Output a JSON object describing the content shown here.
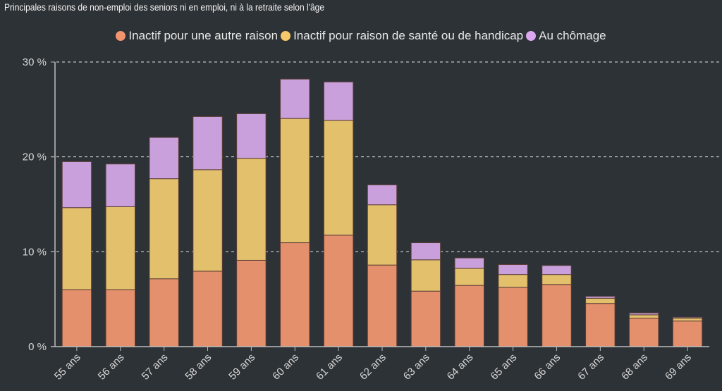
{
  "chart_data": {
    "type": "bar",
    "stacked": true,
    "title": "Principales raisons de non-emploi des seniors ni en emploi, ni à la retraite selon l'âge",
    "xlabel": "",
    "ylabel": "",
    "ylim": [
      0,
      30
    ],
    "yticks": [
      0,
      10,
      20,
      30
    ],
    "ytick_labels": [
      "0 %",
      "10 %",
      "20 %",
      "30 %"
    ],
    "grid": true,
    "legend_position": "top-center",
    "categories": [
      "55 ans",
      "56 ans",
      "57 ans",
      "58 ans",
      "59 ans",
      "60 ans",
      "61 ans",
      "62 ans",
      "63 ans",
      "64 ans",
      "65 ans",
      "66 ans",
      "67 ans",
      "68 ans",
      "69 ans"
    ],
    "series": [
      {
        "name": "Inactif pour une autre raison",
        "color": "#e5906c",
        "legend_color": "#f2956e",
        "values": [
          6.0,
          6.0,
          7.15,
          7.95,
          9.1,
          10.95,
          11.75,
          8.6,
          5.85,
          6.45,
          6.25,
          6.55,
          4.55,
          3.0,
          2.7
        ]
      },
      {
        "name": "Inactif pour raison de santé ou de handicap",
        "color": "#e3c06c",
        "legend_color": "#f5c86a",
        "values": [
          8.65,
          8.75,
          10.55,
          10.7,
          10.75,
          13.1,
          12.1,
          6.35,
          3.3,
          1.8,
          1.35,
          1.05,
          0.55,
          0.35,
          0.3
        ]
      },
      {
        "name": "Au chômage",
        "color": "#c9a0dc",
        "legend_color": "#dba8f0",
        "values": [
          4.85,
          4.5,
          4.35,
          5.6,
          4.7,
          4.15,
          4.05,
          2.1,
          1.8,
          1.1,
          1.05,
          0.95,
          0.2,
          0.2,
          0.1
        ]
      }
    ]
  }
}
